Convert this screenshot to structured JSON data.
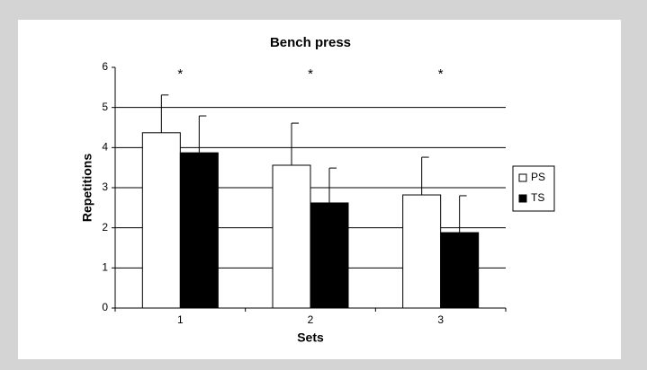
{
  "chart_data": {
    "type": "bar",
    "title": "Bench press",
    "x_label": "Sets",
    "y_label": "Repetitions",
    "categories": [
      "1",
      "2",
      "3"
    ],
    "annotations": [
      "*",
      "*",
      "*"
    ],
    "series": [
      {
        "name": "PS",
        "color": "#ffffff",
        "values": [
          4.37,
          3.56,
          2.82
        ],
        "errors": [
          0.94,
          1.05,
          0.94
        ]
      },
      {
        "name": "TS",
        "color": "#000000",
        "values": [
          3.87,
          2.62,
          1.88
        ],
        "errors": [
          0.92,
          0.87,
          0.92
        ]
      }
    ],
    "ylim": [
      0,
      6
    ],
    "yticks": [
      0,
      1,
      2,
      3,
      4,
      5,
      6
    ],
    "grid": true,
    "legend": "right"
  }
}
